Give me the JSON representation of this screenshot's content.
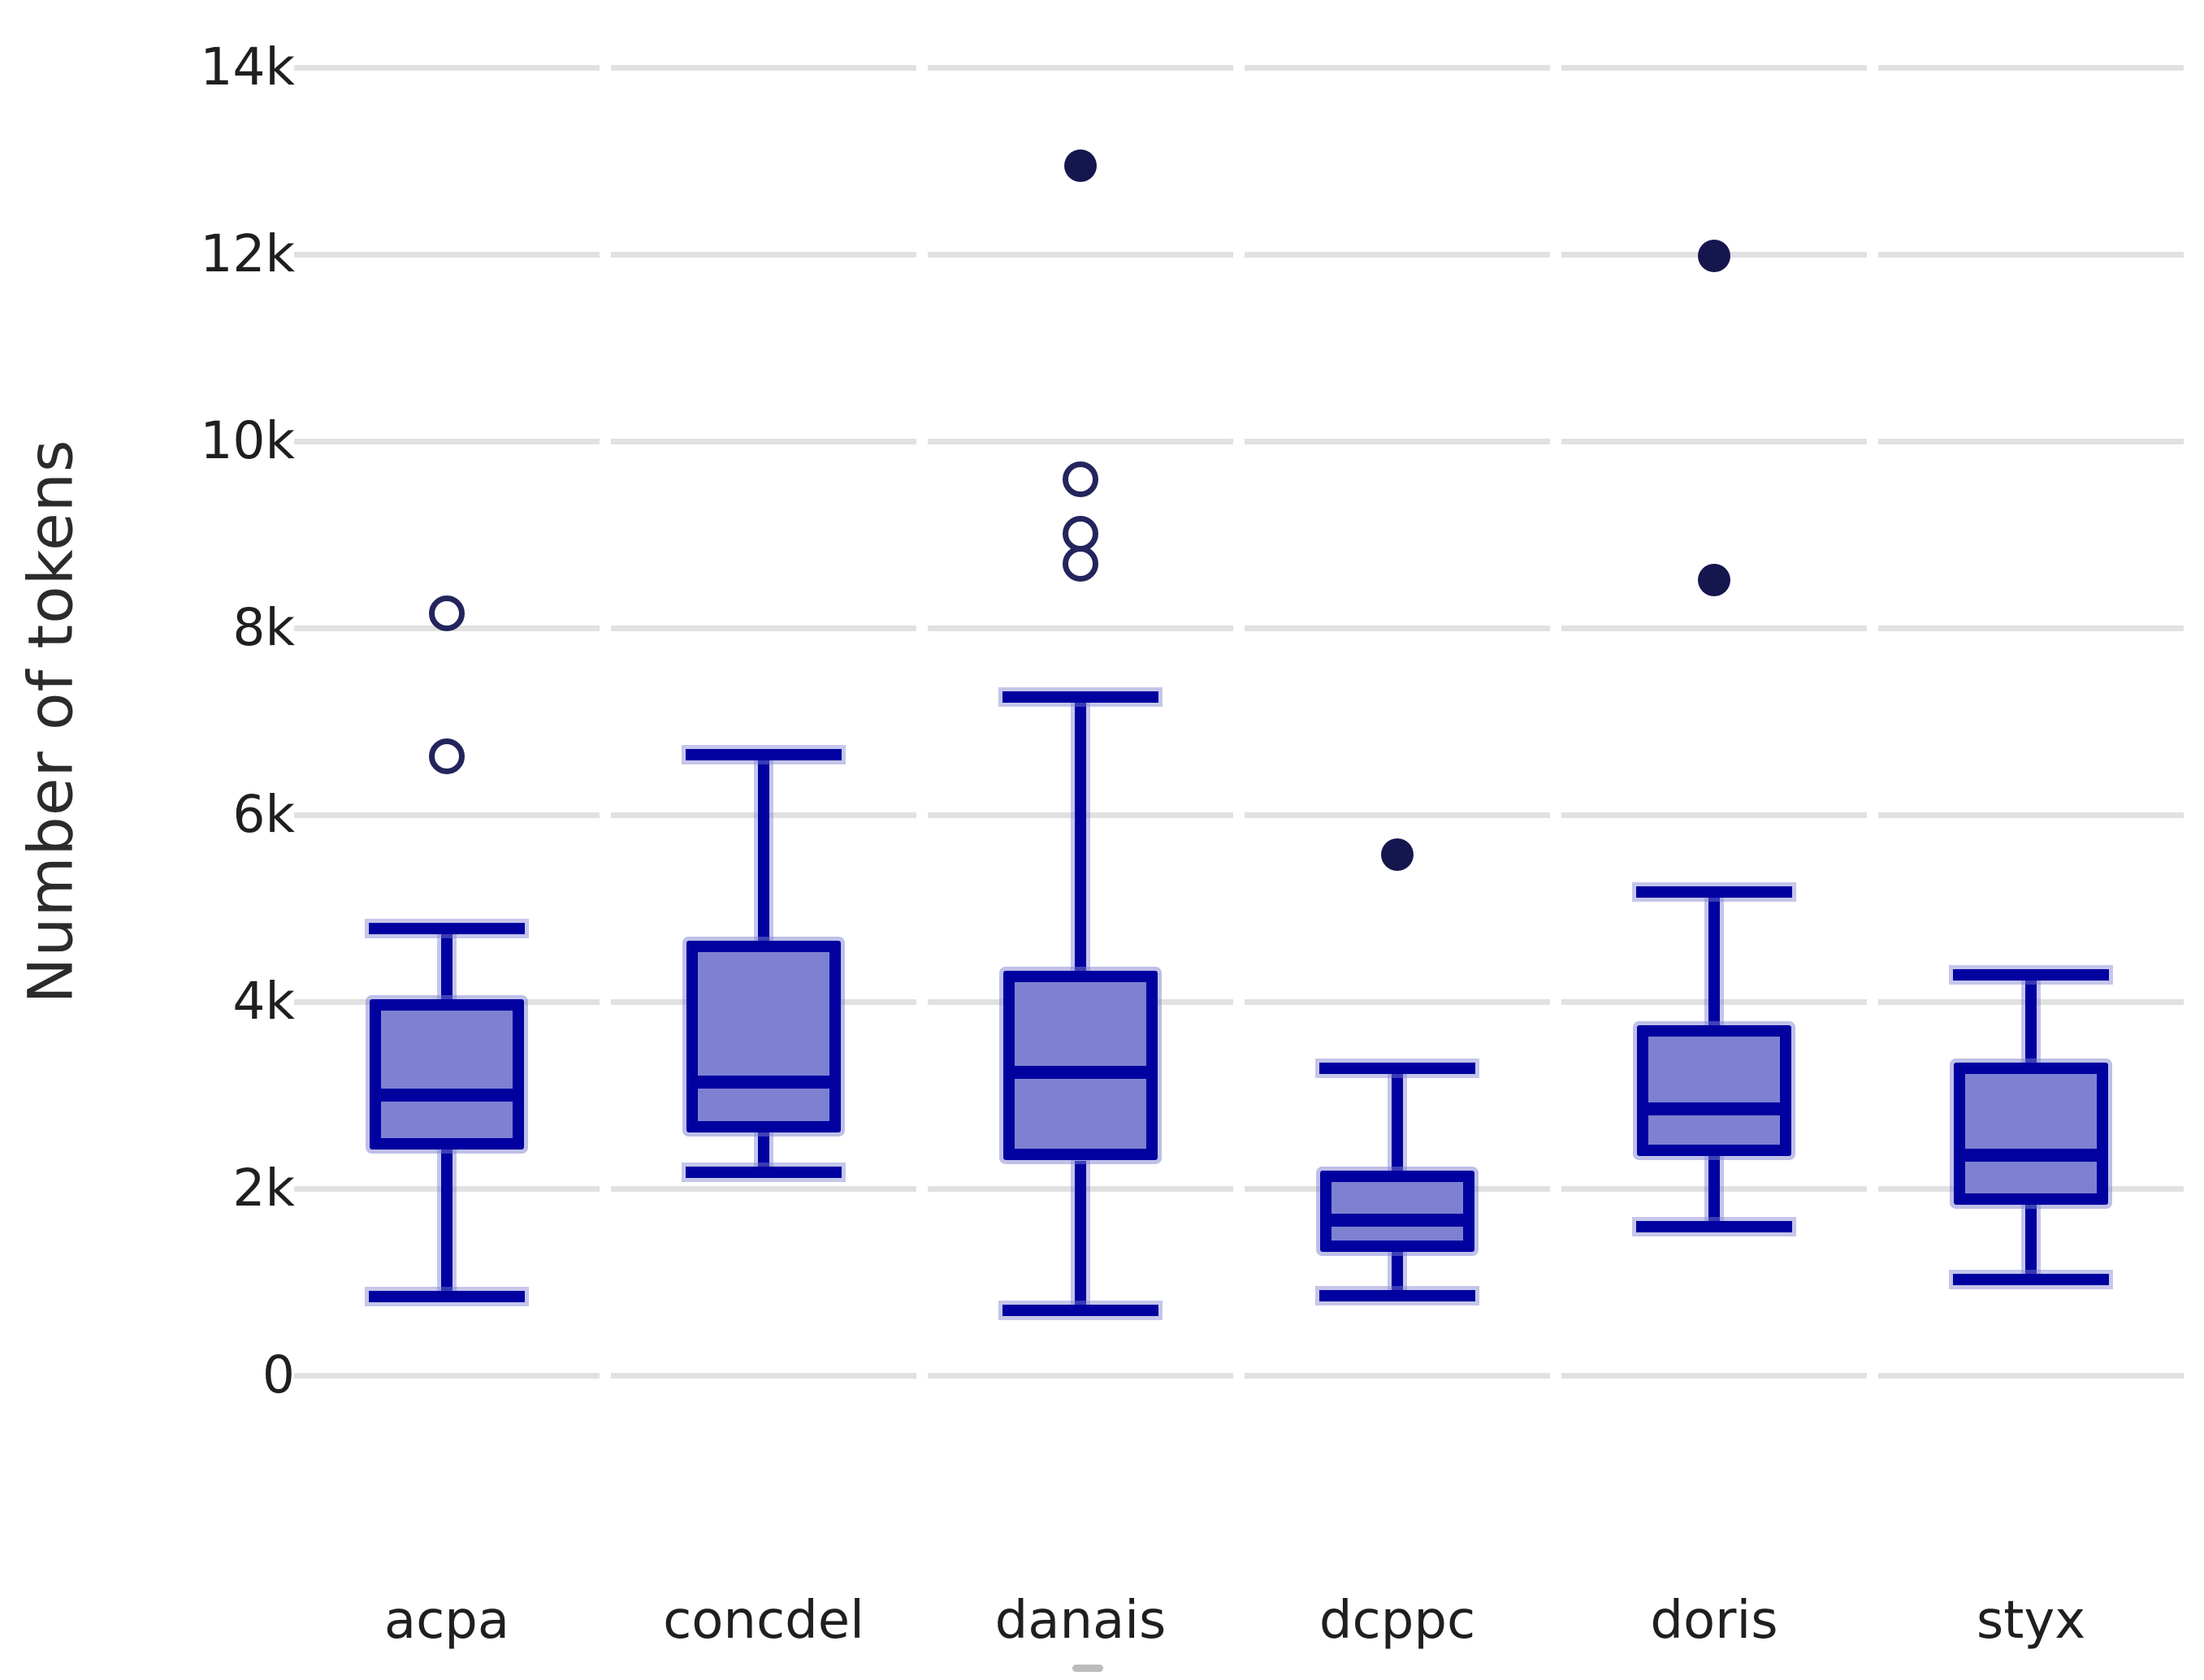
{
  "chart_data": {
    "type": "box",
    "title": "",
    "xlabel": "",
    "ylabel": "Number of tokens",
    "ylim": [
      0,
      14000
    ],
    "grid": "horizontal",
    "legend": "none",
    "yticks": [
      {
        "label": "0",
        "value": 0
      },
      {
        "label": "2k",
        "value": 2000
      },
      {
        "label": "4k",
        "value": 4000
      },
      {
        "label": "6k",
        "value": 6000
      },
      {
        "label": "8k",
        "value": 8000
      },
      {
        "label": "10k",
        "value": 10000
      },
      {
        "label": "12k",
        "value": 12000
      },
      {
        "label": "14k",
        "value": 14000
      }
    ],
    "categories": [
      "acpa",
      "concdel",
      "danais",
      "dcppc",
      "doris",
      "styx"
    ],
    "series": [
      {
        "category": "acpa",
        "whisker_low": 840,
        "q1": 2420,
        "median": 3000,
        "q3": 4030,
        "whisker_high": 4780,
        "outliers_open": [
          8160,
          6630
        ],
        "outliers_filled": []
      },
      {
        "category": "concdel",
        "whisker_low": 2170,
        "q1": 2600,
        "median": 3140,
        "q3": 4650,
        "whisker_high": 6640,
        "outliers_open": [],
        "outliers_filled": []
      },
      {
        "category": "danais",
        "whisker_low": 700,
        "q1": 2300,
        "median": 3240,
        "q3": 4330,
        "whisker_high": 7260,
        "outliers_open": [
          9590,
          9010,
          8690
        ],
        "outliers_filled": [
          12950
        ]
      },
      {
        "category": "dcppc",
        "whisker_low": 850,
        "q1": 1320,
        "median": 1660,
        "q3": 2190,
        "whisker_high": 3290,
        "outliers_open": [],
        "outliers_filled": [
          5570
        ]
      },
      {
        "category": "doris",
        "whisker_low": 1590,
        "q1": 2350,
        "median": 2850,
        "q3": 3750,
        "whisker_high": 5170,
        "outliers_open": [],
        "outliers_filled": [
          11980,
          8510
        ]
      },
      {
        "category": "styx",
        "whisker_low": 1030,
        "q1": 1830,
        "median": 2360,
        "q3": 3350,
        "whisker_high": 4290,
        "outliers_open": [],
        "outliers_filled": []
      }
    ],
    "colors": {
      "box_fill": "#7e81d1",
      "box_border": "#0101a0",
      "outlier_filled": "#15164e",
      "outlier_open_stroke": "#23255c",
      "gridline": "#e1e1e1",
      "text": "#1f1f1f"
    }
  }
}
